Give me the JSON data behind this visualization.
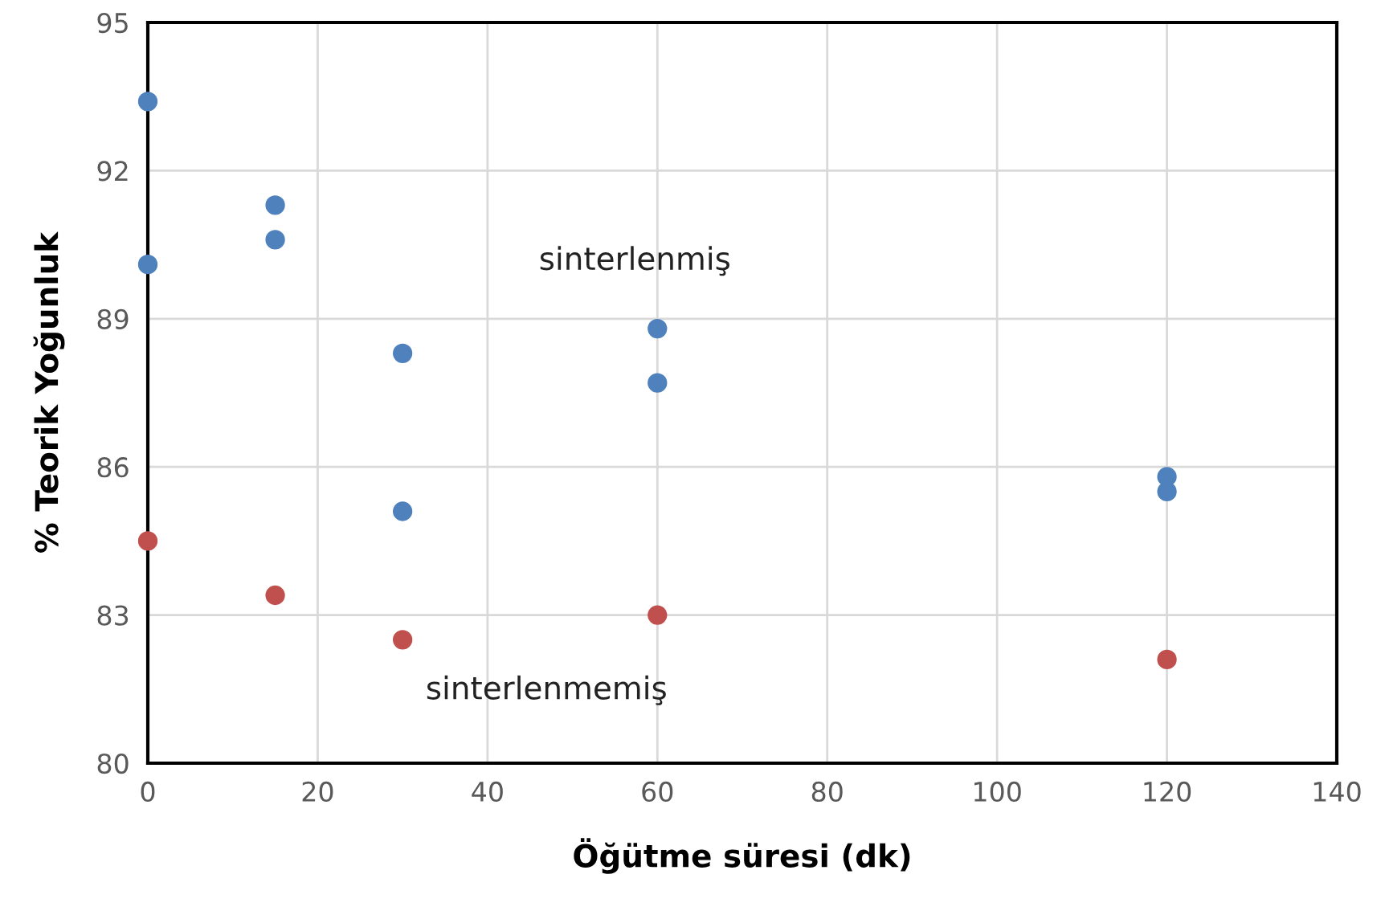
{
  "chart_data": {
    "type": "scatter",
    "xlabel": "Öğütme süresi (dk)",
    "ylabel": "% Teorik Yoğunluk",
    "xlim": [
      0,
      140
    ],
    "xticks": [
      0,
      20,
      40,
      60,
      80,
      100,
      120,
      140
    ],
    "ylim": [
      80,
      95
    ],
    "yticks": [
      80,
      83,
      86,
      89,
      92,
      95
    ],
    "grid": true,
    "marker": "circle",
    "series": [
      {
        "name": "sinterlenmiş",
        "color": "#4f81bd",
        "x": [
          0,
          0,
          15,
          15,
          30,
          30,
          60,
          60,
          120,
          120
        ],
        "values": [
          93.4,
          90.1,
          91.3,
          90.6,
          88.3,
          85.1,
          88.8,
          87.7,
          85.8,
          85.5
        ]
      },
      {
        "name": "sinterlenmemiş",
        "color": "#c0504d",
        "x": [
          0,
          15,
          30,
          60,
          120
        ],
        "values": [
          84.5,
          83.4,
          82.5,
          83.0,
          82.1
        ]
      }
    ]
  }
}
